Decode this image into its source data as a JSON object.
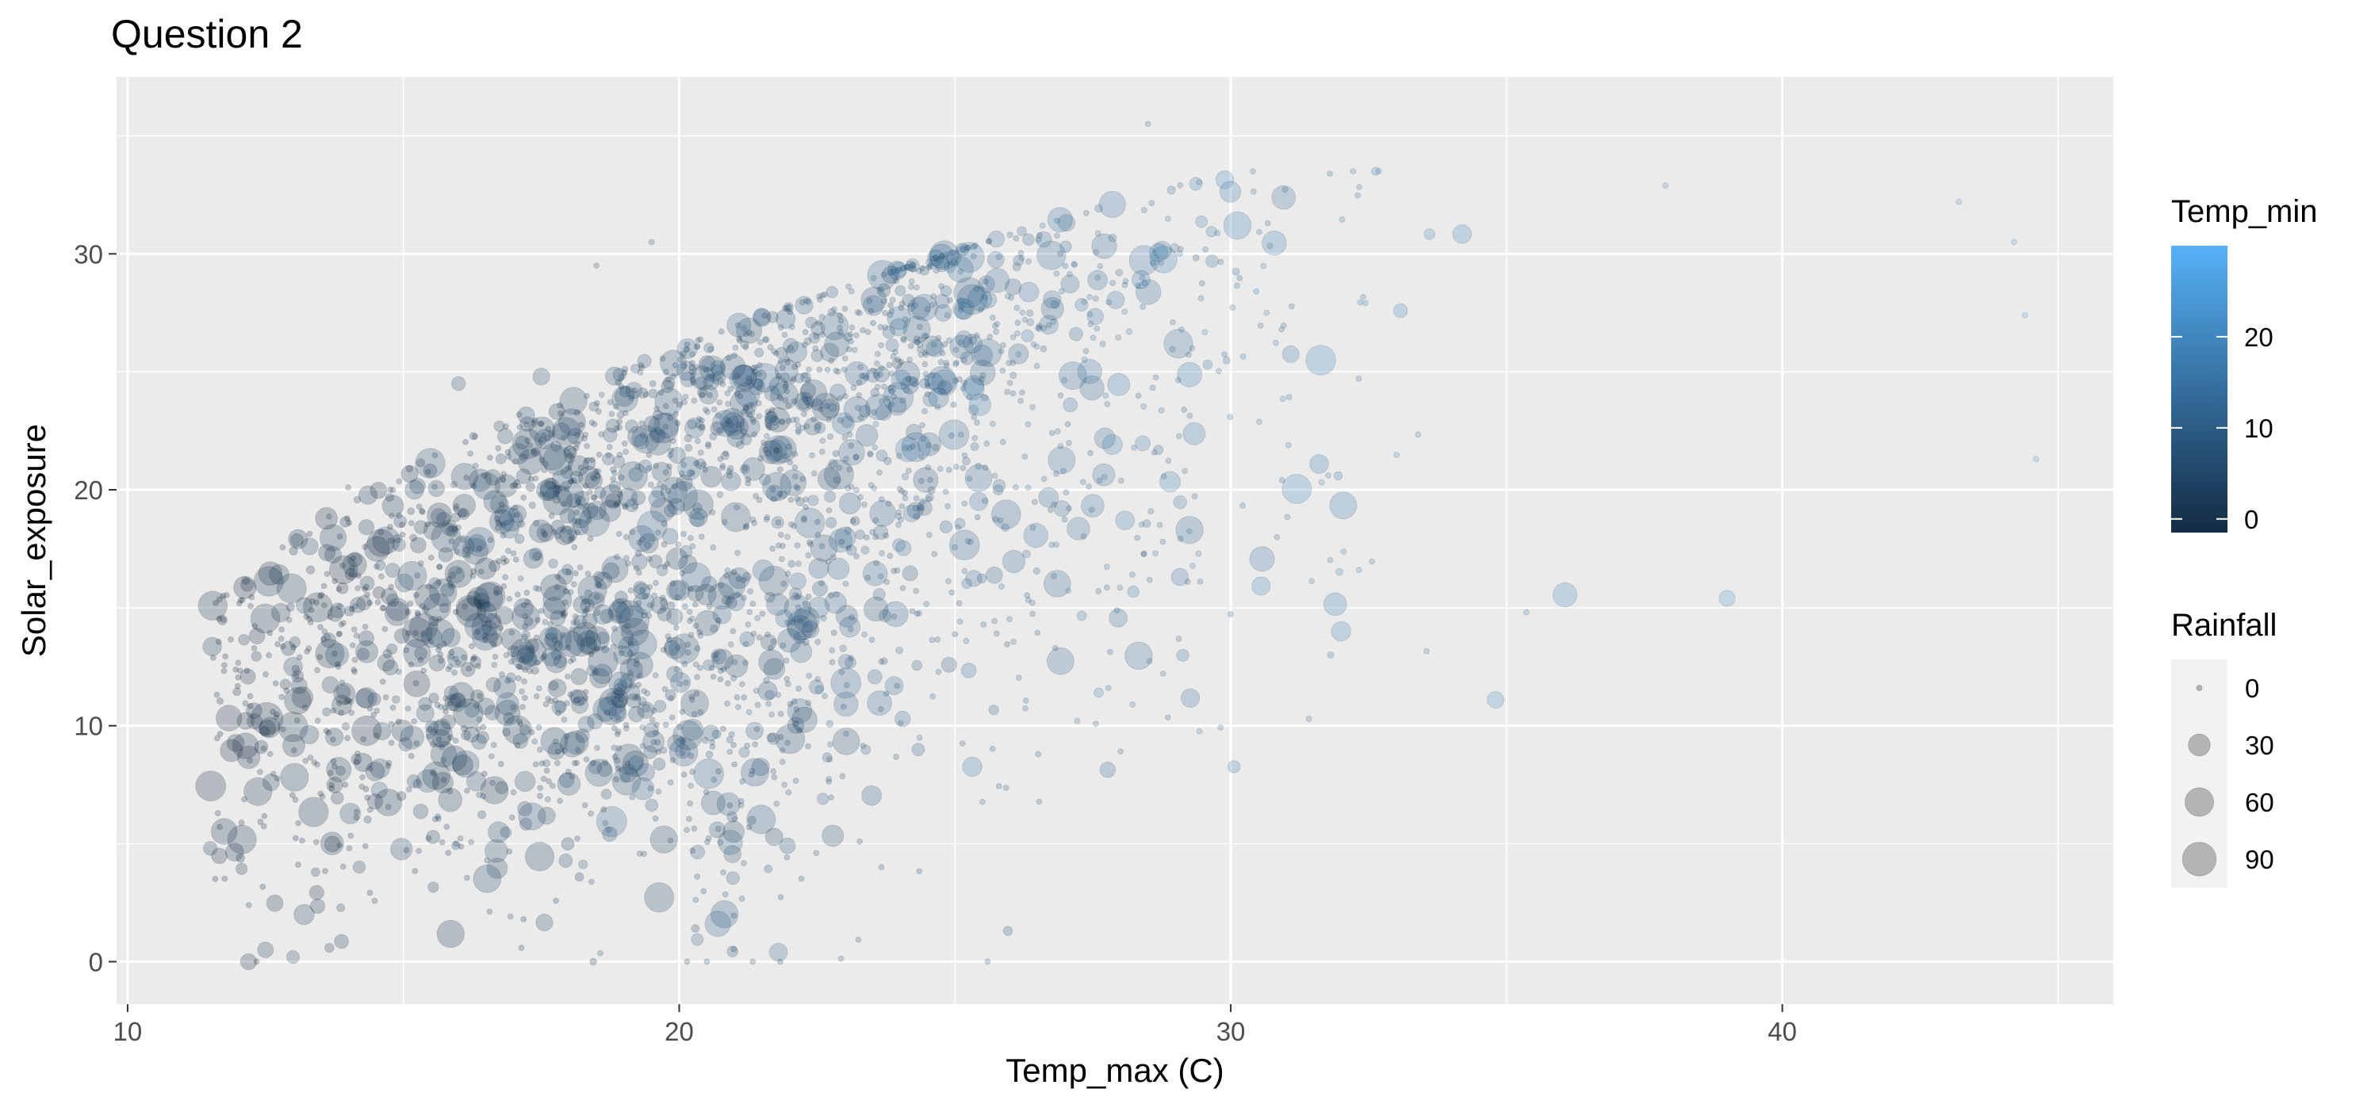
{
  "chart_data": {
    "type": "scatter",
    "title": "Question 2",
    "xlabel": "Temp_max (C)",
    "ylabel": "Solar_exposure",
    "xlim": [
      9.8,
      46
    ],
    "ylim": [
      -1.8,
      37.5
    ],
    "x_ticks": [
      10,
      20,
      30,
      40
    ],
    "y_ticks": [
      0,
      10,
      20,
      30
    ],
    "grid": true,
    "legend_position": "right",
    "color_legend": {
      "title": "Temp_min",
      "variable": "Temp_min",
      "range": [
        -1.5,
        30
      ],
      "ticks": [
        0,
        10,
        20
      ],
      "low_color": "#132b43",
      "high_color": "#56b1f7"
    },
    "size_legend": {
      "title": "Rainfall",
      "variable": "Rainfall",
      "range": [
        0,
        120
      ],
      "values": [
        0,
        30,
        60,
        90
      ]
    },
    "point_alpha": 0.25,
    "points_sample": [
      {
        "x": 11.5,
        "y": 4.8,
        "rain": 8,
        "tmin": 2
      },
      {
        "x": 12.2,
        "y": 2.4,
        "rain": 0,
        "tmin": 2
      },
      {
        "x": 12.5,
        "y": 0.5,
        "rain": 12,
        "tmin": 3
      },
      {
        "x": 13.0,
        "y": 0.2,
        "rain": 6,
        "tmin": 4
      },
      {
        "x": 13.0,
        "y": 12.5,
        "rain": 20,
        "tmin": 4
      },
      {
        "x": 13.3,
        "y": 17.6,
        "rain": 15,
        "tmin": 5
      },
      {
        "x": 13.2,
        "y": 15.1,
        "rain": 12,
        "tmin": 5
      },
      {
        "x": 13.2,
        "y": 2.0,
        "rain": 25,
        "tmin": 4
      },
      {
        "x": 13.8,
        "y": 13.0,
        "rain": 35,
        "tmin": 5
      },
      {
        "x": 14.0,
        "y": 20.1,
        "rain": 0,
        "tmin": 5
      },
      {
        "x": 15.2,
        "y": 20.0,
        "rain": 20,
        "tmin": 6
      },
      {
        "x": 16.0,
        "y": 24.5,
        "rain": 8,
        "tmin": 7
      },
      {
        "x": 17.5,
        "y": 24.8,
        "rain": 15,
        "tmin": 7
      },
      {
        "x": 18.5,
        "y": 29.5,
        "rain": 0,
        "tmin": 8
      },
      {
        "x": 19.5,
        "y": 30.5,
        "rain": 0,
        "tmin": 9
      },
      {
        "x": 20.7,
        "y": 1.6,
        "rain": 45,
        "tmin": 12
      },
      {
        "x": 21.8,
        "y": 0.4,
        "rain": 18,
        "tmin": 13
      },
      {
        "x": 28.5,
        "y": 35.5,
        "rain": 0,
        "tmin": 17
      },
      {
        "x": 32.0,
        "y": 14.0,
        "rain": 22,
        "tmin": 20
      },
      {
        "x": 34.8,
        "y": 11.1,
        "rain": 14,
        "tmin": 22
      },
      {
        "x": 39.0,
        "y": 15.4,
        "rain": 12,
        "tmin": 24
      },
      {
        "x": 43.2,
        "y": 32.2,
        "rain": 0,
        "tmin": 26
      },
      {
        "x": 44.2,
        "y": 30.5,
        "rain": 0,
        "tmin": 27
      },
      {
        "x": 44.4,
        "y": 27.4,
        "rain": 0,
        "tmin": 27
      },
      {
        "x": 44.6,
        "y": 21.3,
        "rain": 0,
        "tmin": 28
      }
    ]
  }
}
